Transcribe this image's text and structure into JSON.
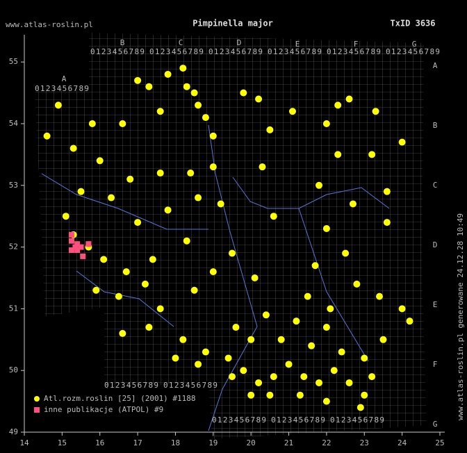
{
  "chart_data": {
    "type": "scatter",
    "title": "Pimpinella major",
    "subtitle": "TxID 3636",
    "watermark": "www.atlas-roslin.pl",
    "side_note": "www.atlas-roslin.pl generowane 24.12.28 10:49",
    "grid_columns": [
      "A",
      "B",
      "C",
      "D",
      "E",
      "F",
      "G"
    ],
    "grid_digits": "0123456789",
    "xlim": [
      14,
      25
    ],
    "xticks": [
      14,
      15,
      16,
      17,
      18,
      19,
      20,
      21,
      22,
      23,
      24,
      25
    ],
    "ylim": [
      49,
      55
    ],
    "yticks": [
      49,
      50,
      51,
      52,
      53,
      54,
      55
    ],
    "series": [
      {
        "name": "Atl.rozm.roslin [25] (2001) #1188",
        "color": "#ffff00",
        "marker": "circle",
        "x": [
          17.0,
          17.3,
          17.8,
          18.2,
          18.3,
          18.5,
          18.6,
          18.8,
          19.8,
          20.2,
          22.3,
          22.6,
          23.3,
          22.0,
          21.1,
          20.5,
          19.0,
          17.6,
          16.6,
          15.8,
          14.9,
          14.6,
          15.3,
          16.0,
          16.8,
          17.6,
          18.4,
          19.0,
          20.3,
          22.3,
          23.2,
          24.0,
          21.8,
          23.6,
          22.7,
          22.0,
          20.6,
          19.2,
          18.6,
          17.8,
          17.0,
          16.3,
          15.5,
          15.1,
          15.3,
          15.7,
          16.1,
          16.7,
          17.2,
          15.9,
          16.5,
          17.6,
          18.5,
          19.0,
          19.5,
          20.1,
          21.5,
          22.1,
          22.8,
          23.4,
          24.0,
          24.2,
          16.6,
          17.3,
          18.2,
          18.8,
          19.4,
          19.8,
          20.2,
          20.6,
          21.0,
          21.4,
          21.8,
          22.2,
          22.6,
          23.0,
          20.0,
          20.8,
          21.6,
          22.4,
          23.0,
          23.5,
          19.6,
          20.4,
          21.2,
          22.0,
          20.0,
          19.5,
          18.6,
          20.5,
          21.3,
          22.0,
          22.9,
          18.0,
          23.2,
          21.7,
          22.5,
          17.4,
          18.3,
          23.6
        ],
        "values": [
          54.7,
          54.6,
          54.8,
          54.9,
          54.6,
          54.5,
          54.3,
          54.1,
          54.5,
          54.4,
          54.3,
          54.4,
          54.2,
          54.0,
          54.2,
          53.9,
          53.8,
          54.2,
          54.0,
          54.0,
          54.3,
          53.8,
          53.6,
          53.4,
          53.1,
          53.2,
          53.2,
          53.3,
          53.3,
          53.5,
          53.5,
          53.7,
          53.0,
          52.9,
          52.7,
          52.3,
          52.5,
          52.7,
          52.8,
          52.6,
          52.4,
          52.8,
          52.9,
          52.5,
          52.2,
          52.0,
          51.8,
          51.6,
          51.4,
          51.3,
          51.2,
          51.0,
          51.3,
          51.6,
          51.9,
          51.5,
          51.2,
          51.0,
          51.4,
          51.2,
          51.0,
          50.8,
          50.6,
          50.7,
          50.5,
          50.3,
          50.2,
          50.0,
          49.8,
          49.9,
          50.1,
          49.9,
          49.8,
          50.0,
          49.8,
          49.6,
          50.5,
          50.5,
          50.4,
          50.3,
          50.2,
          50.5,
          50.7,
          50.9,
          50.8,
          50.7,
          49.6,
          49.9,
          50.1,
          49.6,
          49.6,
          49.5,
          49.4,
          50.2,
          49.9,
          51.7,
          51.9,
          51.8,
          52.1,
          52.4
        ]
      },
      {
        "name": "inne publikacje (ATPOL) #9",
        "color": "#ff4f7f",
        "marker": "square",
        "x": [
          15.25,
          15.25,
          15.4,
          15.4,
          15.25,
          15.7,
          15.55,
          15.35,
          15.5
        ],
        "values": [
          52.2,
          52.1,
          52.05,
          51.95,
          51.95,
          52.05,
          51.85,
          52.0,
          52.0
        ]
      }
    ]
  }
}
